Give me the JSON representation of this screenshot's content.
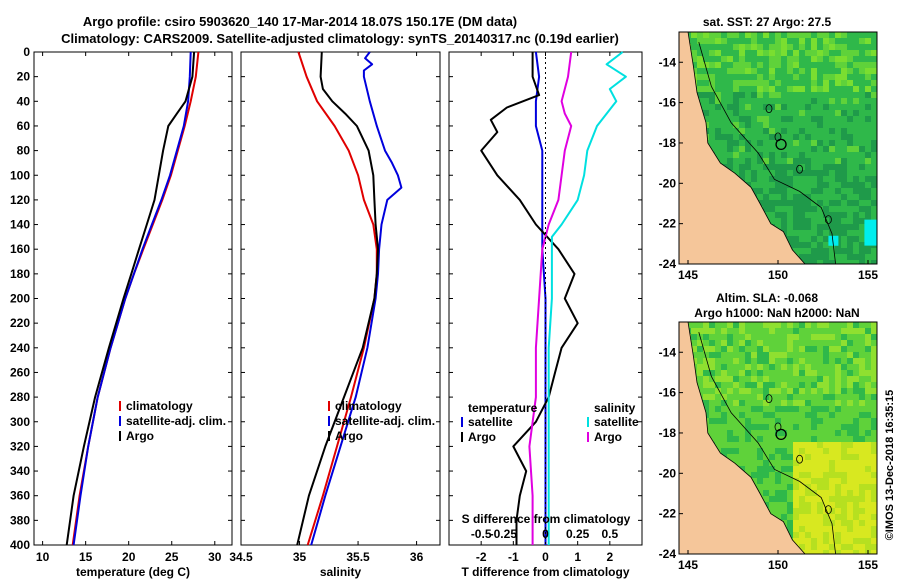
{
  "title": {
    "line1": "Argo profile: csiro 5903620_140 17-Mar-2014 18.07S 150.17E (DM data)",
    "line2": "Climatology: CARS2009. Satellite-adjusted climatology: synTS_20140317.nc (0.19d earlier)"
  },
  "side_label": "©IMOS 13-Dec-2018 16:35:15",
  "colors": {
    "climatology": "#e00000",
    "satellite": "#0000dd",
    "argo": "#000000",
    "satellite_s": "#00e0e0",
    "argo_s": "#e000e0",
    "land": "#f5c69a",
    "sea_dark": "#1f9a4a",
    "sea_mid": "#2fb84a",
    "sea_light": "#5fd23a",
    "sea_cyan": "#00eeee",
    "sea_yellow": "#d8e820"
  },
  "chart_data": [
    {
      "id": "temperature",
      "type": "line",
      "xlabel": "temperature (deg C)",
      "ylabel": "",
      "xlim": [
        9,
        32
      ],
      "ylim": [
        400,
        0
      ],
      "xticks": [
        10,
        15,
        20,
        25,
        30
      ],
      "yticks": [
        0,
        20,
        40,
        60,
        80,
        100,
        120,
        140,
        160,
        180,
        200,
        220,
        240,
        260,
        280,
        300,
        320,
        340,
        360,
        380,
        400
      ],
      "legend": [
        "climatology",
        "satellite-adj. clim.",
        "Argo"
      ],
      "series": [
        {
          "name": "climatology",
          "color": "#e00000",
          "depth": [
            0,
            20,
            40,
            60,
            80,
            100,
            120,
            140,
            160,
            180,
            200,
            240,
            280,
            320,
            360,
            400
          ],
          "values": [
            28.1,
            27.8,
            27.2,
            26.5,
            25.7,
            24.9,
            23.9,
            22.8,
            21.7,
            20.6,
            19.6,
            17.9,
            16.4,
            15.3,
            14.3,
            13.5
          ]
        },
        {
          "name": "satellite-adj. clim.",
          "color": "#0000dd",
          "depth": [
            0,
            20,
            40,
            60,
            80,
            100,
            120,
            140,
            160,
            180,
            200,
            240,
            280,
            320,
            360,
            400
          ],
          "values": [
            27.2,
            27.1,
            26.9,
            26.4,
            25.6,
            24.8,
            23.8,
            22.7,
            21.6,
            20.6,
            19.6,
            17.9,
            16.4,
            15.3,
            14.4,
            13.6
          ]
        },
        {
          "name": "Argo",
          "color": "#000000",
          "depth": [
            0,
            20,
            40,
            50,
            60,
            80,
            100,
            120,
            140,
            160,
            180,
            200,
            240,
            280,
            320,
            360,
            400
          ],
          "values": [
            27.6,
            27.4,
            26.6,
            25.6,
            24.6,
            24.0,
            23.5,
            23.0,
            22.1,
            21.2,
            20.3,
            19.4,
            17.7,
            16.1,
            14.8,
            13.6,
            12.8
          ]
        }
      ]
    },
    {
      "id": "salinity",
      "type": "line",
      "xlabel": "salinity",
      "ylabel": "",
      "xlim": [
        34.5,
        36.2
      ],
      "ylim": [
        400,
        0
      ],
      "xticks": [
        34.5,
        35,
        35.5,
        36
      ],
      "xticklabels": [
        "34.5",
        "35",
        "35.5",
        "36"
      ],
      "legend": [
        "climatology",
        "satellite-adj. clim.",
        "Argo"
      ],
      "series": [
        {
          "name": "climatology",
          "color": "#e00000",
          "depth": [
            0,
            20,
            40,
            60,
            80,
            100,
            120,
            140,
            160,
            180,
            200,
            240,
            280,
            320,
            360,
            400
          ],
          "values": [
            34.99,
            35.06,
            35.15,
            35.3,
            35.42,
            35.5,
            35.55,
            35.63,
            35.66,
            35.66,
            35.64,
            35.55,
            35.44,
            35.32,
            35.2,
            35.07
          ]
        },
        {
          "name": "satellite-adj. clim.",
          "color": "#0000dd",
          "depth": [
            0,
            5,
            10,
            15,
            20,
            40,
            60,
            80,
            90,
            100,
            110,
            120,
            140,
            160,
            180,
            200,
            240,
            280,
            320,
            360,
            400
          ],
          "values": [
            35.6,
            35.56,
            35.62,
            35.55,
            35.55,
            35.6,
            35.66,
            35.73,
            35.79,
            35.84,
            35.87,
            35.75,
            35.7,
            35.68,
            35.67,
            35.65,
            35.58,
            35.48,
            35.35,
            35.22,
            35.1
          ]
        },
        {
          "name": "Argo",
          "color": "#000000",
          "depth": [
            0,
            20,
            30,
            40,
            50,
            60,
            80,
            100,
            120,
            140,
            160,
            180,
            200,
            240,
            280,
            320,
            360,
            400
          ],
          "values": [
            35.19,
            35.18,
            35.2,
            35.28,
            35.39,
            35.49,
            35.59,
            35.63,
            35.64,
            35.65,
            35.67,
            35.66,
            35.64,
            35.54,
            35.38,
            35.22,
            35.08,
            34.98
          ]
        }
      ]
    },
    {
      "id": "difference",
      "type": "line",
      "xlabel": "T difference from climatology",
      "xlabel2": "S difference from climatology",
      "xlim": [
        -3,
        3
      ],
      "ylim": [
        400,
        0
      ],
      "xticks": [
        -2,
        -1,
        0,
        1,
        2
      ],
      "xticks_s": [
        "-0.5",
        "-0.25",
        "0",
        "0.25",
        "0.5"
      ],
      "legend_temperature_title": "temperature",
      "legend_salinity_title": "salinity",
      "legend_temperature": [
        "satellite",
        "Argo"
      ],
      "legend_salinity": [
        "satellite",
        "Argo"
      ],
      "series": [
        {
          "name": "T satellite",
          "color": "#0000dd",
          "depth": [
            0,
            20,
            40,
            60,
            80,
            100,
            120,
            140,
            160,
            200,
            240,
            280,
            320,
            360,
            400
          ],
          "values": [
            -0.3,
            -0.2,
            -0.3,
            -0.3,
            -0.1,
            -0.1,
            -0.1,
            -0.1,
            -0.1,
            0.0,
            0.0,
            0.0,
            0.0,
            0.0,
            0.0
          ]
        },
        {
          "name": "T Argo",
          "color": "#000000",
          "depth": [
            0,
            20,
            35,
            45,
            55,
            65,
            80,
            100,
            120,
            140,
            160,
            180,
            200,
            220,
            240,
            260,
            280,
            300,
            320,
            340,
            360,
            380,
            400
          ],
          "values": [
            -0.4,
            -0.4,
            -0.2,
            -1.2,
            -1.7,
            -1.5,
            -2.0,
            -1.5,
            -0.8,
            -0.3,
            0.4,
            0.9,
            0.6,
            1.0,
            0.5,
            0.3,
            0.1,
            -0.3,
            -1.0,
            -0.6,
            -0.8,
            -0.9,
            -0.9
          ]
        },
        {
          "name": "S satellite",
          "color": "#00e0e0",
          "depth": [
            0,
            10,
            20,
            30,
            40,
            60,
            80,
            100,
            120,
            140,
            150,
            160,
            200,
            240,
            280,
            320,
            360,
            400
          ],
          "values": [
            2.4,
            1.9,
            2.5,
            2.0,
            2.2,
            1.6,
            1.3,
            1.2,
            1.0,
            0.5,
            0.2,
            0.2,
            0.2,
            0.1,
            0.1,
            0.1,
            0.1,
            0.1
          ]
        },
        {
          "name": "S Argo",
          "color": "#e000e0",
          "depth": [
            0,
            20,
            40,
            50,
            60,
            80,
            100,
            120,
            140,
            160,
            200,
            240,
            280,
            320,
            360,
            400
          ],
          "values": [
            0.8,
            0.7,
            0.5,
            0.6,
            0.8,
            0.6,
            0.5,
            0.4,
            0.1,
            -0.1,
            -0.2,
            -0.3,
            -0.3,
            -0.5,
            -0.4,
            -0.4
          ]
        }
      ]
    },
    {
      "id": "map_sst",
      "type": "heatmap",
      "title": "sat. SST: 27 Argo: 27.5",
      "xticks": [
        145,
        150,
        155
      ],
      "yticks": [
        -14,
        -16,
        -18,
        -20,
        -22,
        -24
      ],
      "xlim": [
        144.5,
        155.5
      ],
      "ylim": [
        -24,
        -12.5
      ],
      "marker": {
        "lon": 150.17,
        "lat": -18.07
      }
    },
    {
      "id": "map_sla",
      "type": "heatmap",
      "title": "Altim. SLA: -0.068",
      "subtitle": "Argo h1000: NaN h2000: NaN",
      "xticks": [
        145,
        150,
        155
      ],
      "yticks": [
        -14,
        -16,
        -18,
        -20,
        -22,
        -24
      ],
      "xlim": [
        144.5,
        155.5
      ],
      "ylim": [
        -24,
        -12.5
      ],
      "marker": {
        "lon": 150.17,
        "lat": -18.07
      }
    }
  ]
}
